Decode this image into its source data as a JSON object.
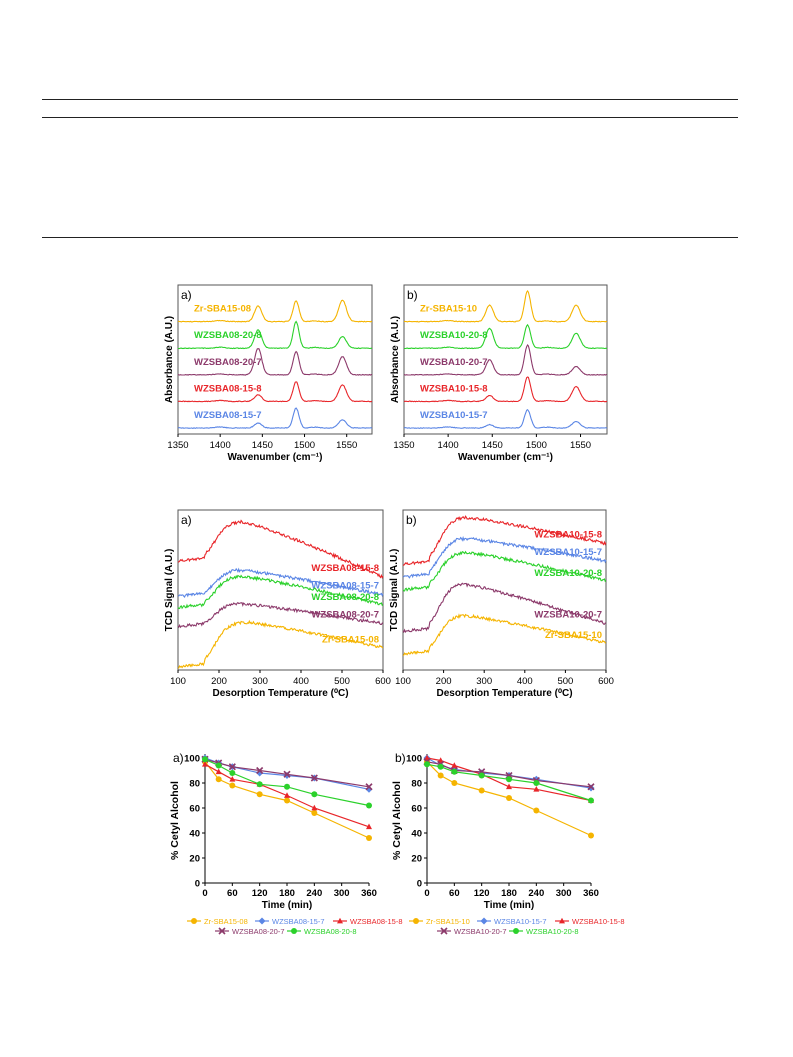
{
  "colors": {
    "Zr": "#f5b400",
    "w15_7": "#5b86e5",
    "w15_8": "#e8262a",
    "w20_7": "#8c3a6b",
    "w20_8": "#2bd12b",
    "frame": "#555555",
    "axis": "#000000"
  },
  "chart_data": [
    {
      "id": "ftir_a",
      "type": "line",
      "panel_label": "a)",
      "xlabel": "Wavenumber (cm⁻¹)",
      "ylabel": "Absorbance (A.U.)",
      "xlim": [
        1350,
        1580
      ],
      "xticks": [
        1350,
        1400,
        1450,
        1500,
        1550
      ],
      "peak_positions": [
        1445,
        1490,
        1545
      ],
      "series": [
        {
          "name": "Zr-SBA15-08",
          "color_key": "Zr",
          "peak_heights": [
            0.95,
            1.25,
            1.3
          ]
        },
        {
          "name": "WZSBA08-20-8",
          "color_key": "w20_8",
          "peak_heights": [
            1.1,
            1.6,
            0.7
          ]
        },
        {
          "name": "WZSBA08-20-7",
          "color_key": "w20_7",
          "peak_heights": [
            1.6,
            1.4,
            1.1
          ]
        },
        {
          "name": "WZSBA08-15-8",
          "color_key": "w15_8",
          "peak_heights": [
            0.4,
            1.2,
            1.0
          ]
        },
        {
          "name": "WZSBA08-15-7",
          "color_key": "w15_7",
          "peak_heights": [
            0.3,
            1.2,
            0.5
          ]
        }
      ]
    },
    {
      "id": "ftir_b",
      "type": "line",
      "panel_label": "b)",
      "xlabel": "Wavenumber (cm⁻¹)",
      "ylabel": "Absorbance (A.U.)",
      "xlim": [
        1350,
        1580
      ],
      "xticks": [
        1350,
        1400,
        1450,
        1500,
        1550
      ],
      "peak_positions": [
        1447,
        1490,
        1545
      ],
      "series": [
        {
          "name": "Zr-SBA15-10",
          "color_key": "Zr",
          "peak_heights": [
            1.0,
            1.85,
            1.0
          ]
        },
        {
          "name": "WZSBA10-20-8",
          "color_key": "w20_8",
          "peak_heights": [
            1.2,
            1.4,
            0.9
          ]
        },
        {
          "name": "WZSBA10-20-7",
          "color_key": "w20_7",
          "peak_heights": [
            0.9,
            1.8,
            0.5
          ]
        },
        {
          "name": "WZSBA10-15-8",
          "color_key": "w15_8",
          "peak_heights": [
            0.35,
            1.5,
            0.9
          ]
        },
        {
          "name": "WZSBA10-15-7",
          "color_key": "w15_7",
          "peak_heights": [
            0.2,
            1.1,
            0.4
          ]
        }
      ]
    },
    {
      "id": "tpd_a",
      "type": "line",
      "panel_label": "a)",
      "xlabel": "Desorption Temperature (⁰C)",
      "ylabel": "TCD Signal (A.U.)",
      "xlim": [
        100,
        600
      ],
      "xticks": [
        100,
        200,
        300,
        400,
        500,
        600
      ],
      "series": [
        {
          "name": "WZSBA08-15-8",
          "color_key": "w15_8",
          "start": 0.68,
          "peak": 0.93,
          "end": 0.58,
          "peak_T": 255
        },
        {
          "name": "WZSBA08-15-7",
          "color_key": "w15_7",
          "start": 0.46,
          "peak": 0.63,
          "end": 0.47,
          "peak_T": 240
        },
        {
          "name": "WZSBA08-20-8",
          "color_key": "w20_8",
          "start": 0.39,
          "peak": 0.59,
          "end": 0.41,
          "peak_T": 245
        },
        {
          "name": "WZSBA08-20-7",
          "color_key": "w20_7",
          "start": 0.27,
          "peak": 0.42,
          "end": 0.29,
          "peak_T": 235
        },
        {
          "name": "Zr-SBA15-08",
          "color_key": "Zr",
          "start": 0.02,
          "peak": 0.3,
          "end": 0.14,
          "peak_T": 265
        }
      ]
    },
    {
      "id": "tpd_b",
      "type": "line",
      "panel_label": "b)",
      "xlabel": "Desorption Temperature (⁰C)",
      "ylabel": "TCD Signal (A.U.)",
      "xlim": [
        100,
        600
      ],
      "xticks": [
        100,
        200,
        300,
        400,
        500,
        600
      ],
      "series": [
        {
          "name": "WZSBA10-15-8",
          "color_key": "w15_8",
          "start": 0.66,
          "peak": 0.96,
          "end": 0.79,
          "peak_T": 245
        },
        {
          "name": "WZSBA10-15-7",
          "color_key": "w15_7",
          "start": 0.58,
          "peak": 0.83,
          "end": 0.68,
          "peak_T": 235
        },
        {
          "name": "WZSBA10-20-8",
          "color_key": "w20_8",
          "start": 0.5,
          "peak": 0.74,
          "end": 0.56,
          "peak_T": 245
        },
        {
          "name": "WZSBA10-20-7",
          "color_key": "w20_7",
          "start": 0.24,
          "peak": 0.55,
          "end": 0.29,
          "peak_T": 230
        },
        {
          "name": "Zr-SBA15-10",
          "color_key": "Zr",
          "start": 0.1,
          "peak": 0.35,
          "end": 0.17,
          "peak_T": 230
        }
      ]
    },
    {
      "id": "conv_a",
      "type": "line",
      "panel_label": "a)",
      "xlabel": "Time (min)",
      "ylabel": "% Cetyl Alcohol",
      "xlim": [
        0,
        360
      ],
      "ylim": [
        0,
        100
      ],
      "xticks": [
        0,
        60,
        120,
        180,
        240,
        300,
        360
      ],
      "yticks": [
        0,
        20,
        40,
        60,
        80,
        100
      ],
      "series": [
        {
          "name": "Zr-SBA15-08",
          "color_key": "Zr",
          "marker": "circle",
          "x": [
            0,
            30,
            60,
            120,
            180,
            240,
            360
          ],
          "y": [
            97,
            83,
            78,
            71,
            66,
            56,
            36
          ]
        },
        {
          "name": "WZSBA08-15-7",
          "color_key": "w15_7",
          "marker": "diamond",
          "x": [
            0,
            30,
            60,
            120,
            180,
            240,
            360
          ],
          "y": [
            100,
            96,
            93,
            88,
            86,
            84,
            75
          ]
        },
        {
          "name": "WZSBA08-15-8",
          "color_key": "w15_8",
          "marker": "triangle",
          "x": [
            0,
            30,
            60,
            120,
            180,
            240,
            360
          ],
          "y": [
            95,
            89,
            83,
            79,
            70,
            60,
            45
          ]
        },
        {
          "name": "WZSBA08-20-7",
          "color_key": "w20_7",
          "marker": "cross",
          "x": [
            0,
            30,
            60,
            120,
            180,
            240,
            360
          ],
          "y": [
            99,
            96,
            93,
            90,
            87,
            84,
            77
          ]
        },
        {
          "name": "WZSBA08-20-8",
          "color_key": "w20_8",
          "marker": "circle",
          "x": [
            0,
            30,
            60,
            120,
            180,
            240,
            360
          ],
          "y": [
            99,
            94,
            88,
            79,
            77,
            71,
            62
          ]
        }
      ]
    },
    {
      "id": "conv_b",
      "type": "line",
      "panel_label": "b)",
      "xlabel": "Time (min)",
      "ylabel": "% Cetyl Alcohol",
      "xlim": [
        0,
        360
      ],
      "ylim": [
        0,
        100
      ],
      "xticks": [
        0,
        60,
        120,
        180,
        240,
        300,
        360
      ],
      "yticks": [
        0,
        20,
        40,
        60,
        80,
        100
      ],
      "series": [
        {
          "name": "Zr-SBA15-10",
          "color_key": "Zr",
          "marker": "circle",
          "x": [
            0,
            30,
            60,
            120,
            180,
            240,
            360
          ],
          "y": [
            97,
            86,
            80,
            74,
            68,
            58,
            38
          ]
        },
        {
          "name": "WZSBA10-15-7",
          "color_key": "w15_7",
          "marker": "diamond",
          "x": [
            0,
            30,
            60,
            120,
            180,
            240,
            360
          ],
          "y": [
            100,
            94,
            91,
            88,
            86,
            83,
            76
          ]
        },
        {
          "name": "WZSBA10-15-8",
          "color_key": "w15_8",
          "marker": "triangle",
          "x": [
            0,
            30,
            60,
            120,
            180,
            240,
            360
          ],
          "y": [
            100,
            98,
            94,
            87,
            77,
            75,
            66
          ]
        },
        {
          "name": "WZSBA10-20-7",
          "color_key": "w20_7",
          "marker": "cross",
          "x": [
            0,
            30,
            60,
            120,
            180,
            240,
            360
          ],
          "y": [
            97,
            95,
            90,
            89,
            86,
            82,
            77
          ]
        },
        {
          "name": "WZSBA10-20-8",
          "color_key": "w20_8",
          "marker": "circle",
          "x": [
            0,
            30,
            60,
            120,
            180,
            240,
            360
          ],
          "y": [
            95,
            93,
            89,
            86,
            83,
            80,
            66
          ]
        }
      ]
    }
  ]
}
